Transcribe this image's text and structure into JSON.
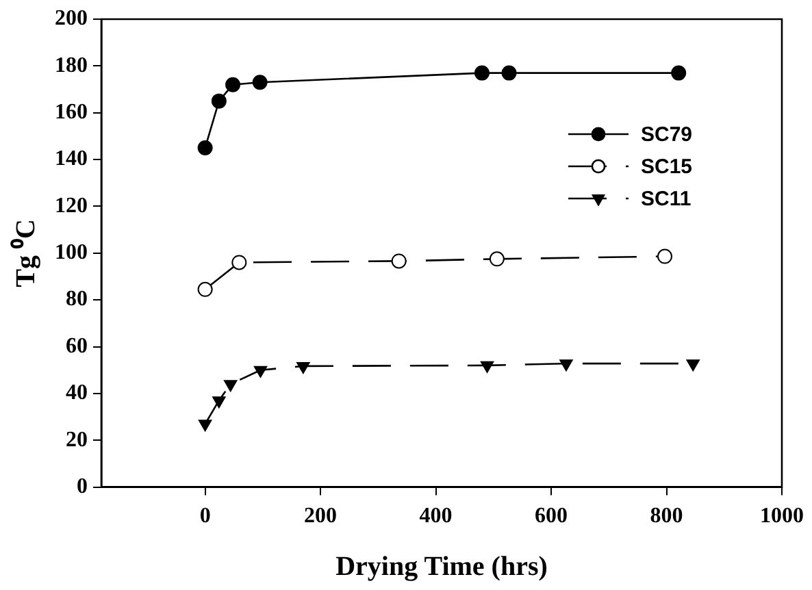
{
  "chart_data": {
    "type": "line",
    "xlabel": "Drying Time (hrs)",
    "ylabel": "Tg ⁰C",
    "xlim": [
      -180,
      1000
    ],
    "xticks": [
      0,
      200,
      400,
      600,
      800,
      1000
    ],
    "ylim": [
      0,
      200
    ],
    "yticks": [
      0,
      20,
      40,
      60,
      80,
      100,
      120,
      140,
      160,
      180,
      200
    ],
    "grid": false,
    "legend": "top right",
    "series": [
      {
        "name": "SC79",
        "color": "#000000",
        "marker": "circle",
        "line_style": "solid",
        "x": [
          0,
          24,
          48,
          95,
          480,
          527,
          821
        ],
        "values": [
          145,
          165,
          172,
          173,
          177,
          177,
          177
        ]
      },
      {
        "name": "SC15",
        "color": "#000000",
        "marker": "circle-open",
        "line_style": "dashed",
        "x": [
          0,
          59,
          336,
          506,
          797
        ],
        "values": [
          84.5,
          96,
          96.6,
          97.5,
          98.6
        ]
      },
      {
        "name": "SC11",
        "color": "#000000",
        "marker": "triangle",
        "line_style": "dashed",
        "x": [
          0,
          24,
          44,
          96,
          170,
          489,
          626,
          846
        ],
        "values": [
          27,
          37,
          44,
          50,
          51.7,
          52,
          52.8,
          52.8
        ]
      }
    ]
  }
}
